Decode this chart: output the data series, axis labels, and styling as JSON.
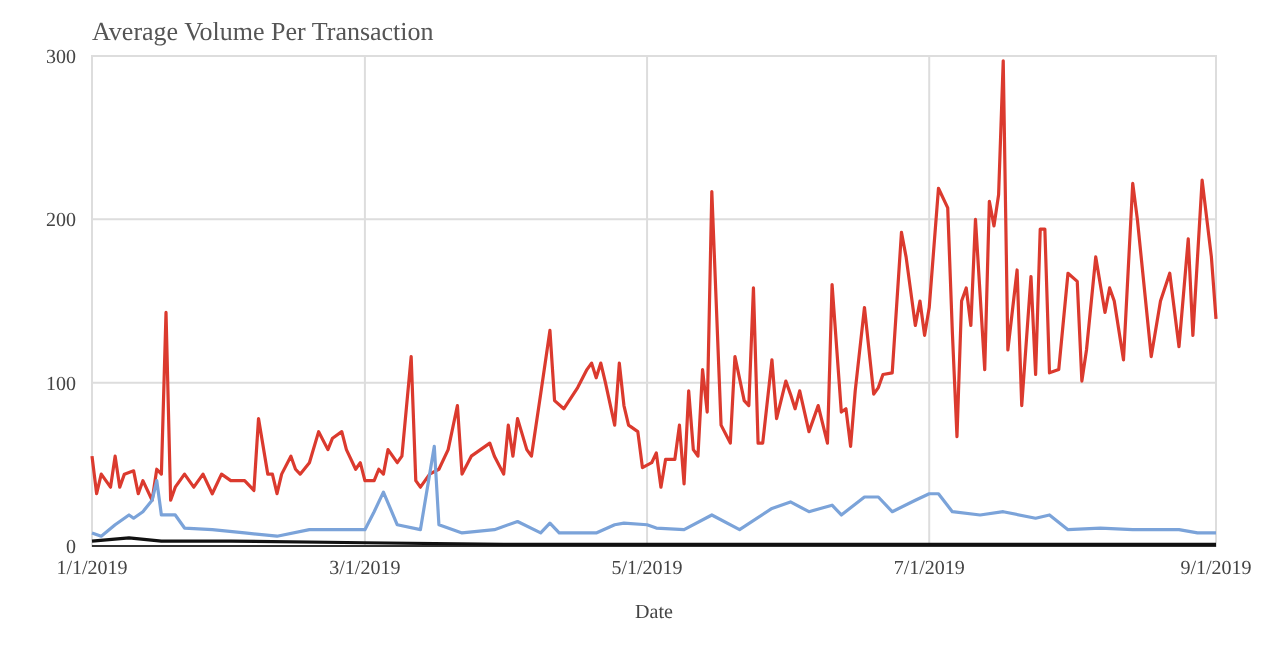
{
  "chart_data": {
    "type": "line",
    "title": "Average Volume Per Transaction",
    "xlabel": "Date",
    "xlim": [
      "2019-01-01",
      "2019-09-01"
    ],
    "xticks": [
      {
        "value": "2019-01-01",
        "label": "1/1/2019"
      },
      {
        "value": "2019-03-01",
        "label": "3/1/2019"
      },
      {
        "value": "2019-05-01",
        "label": "5/1/2019"
      },
      {
        "value": "2019-07-01",
        "label": "7/1/2019"
      },
      {
        "value": "2019-09-01",
        "label": "9/1/2019"
      }
    ],
    "ylim": [
      0,
      300
    ],
    "yticks": [
      0,
      100,
      200,
      300
    ],
    "grid": true,
    "line_style": "solid",
    "marker": "none",
    "series": [
      {
        "color": "#db3a2e",
        "x": [
          "2019-01-01",
          "2019-01-02",
          "2019-01-03",
          "2019-01-05",
          "2019-01-06",
          "2019-01-07",
          "2019-01-08",
          "2019-01-10",
          "2019-01-11",
          "2019-01-12",
          "2019-01-14",
          "2019-01-15",
          "2019-01-16",
          "2019-01-17",
          "2019-01-18",
          "2019-01-19",
          "2019-01-21",
          "2019-01-23",
          "2019-01-25",
          "2019-01-27",
          "2019-01-29",
          "2019-01-31",
          "2019-02-03",
          "2019-02-05",
          "2019-02-06",
          "2019-02-08",
          "2019-02-09",
          "2019-02-10",
          "2019-02-11",
          "2019-02-13",
          "2019-02-14",
          "2019-02-15",
          "2019-02-17",
          "2019-02-19",
          "2019-02-21",
          "2019-02-22",
          "2019-02-24",
          "2019-02-25",
          "2019-02-27",
          "2019-02-28",
          "2019-03-01",
          "2019-03-03",
          "2019-03-04",
          "2019-03-05",
          "2019-03-06",
          "2019-03-08",
          "2019-03-09",
          "2019-03-11",
          "2019-03-12",
          "2019-03-13",
          "2019-03-15",
          "2019-03-17",
          "2019-03-19",
          "2019-03-21",
          "2019-03-22",
          "2019-03-24",
          "2019-03-26",
          "2019-03-28",
          "2019-03-29",
          "2019-03-31",
          "2019-04-01",
          "2019-04-02",
          "2019-04-03",
          "2019-04-05",
          "2019-04-06",
          "2019-04-08",
          "2019-04-10",
          "2019-04-11",
          "2019-04-13",
          "2019-04-16",
          "2019-04-18",
          "2019-04-19",
          "2019-04-20",
          "2019-04-21",
          "2019-04-22",
          "2019-04-24",
          "2019-04-25",
          "2019-04-26",
          "2019-04-27",
          "2019-04-29",
          "2019-04-30",
          "2019-05-02",
          "2019-05-03",
          "2019-05-04",
          "2019-05-05",
          "2019-05-07",
          "2019-05-08",
          "2019-05-09",
          "2019-05-10",
          "2019-05-11",
          "2019-05-12",
          "2019-05-13",
          "2019-05-14",
          "2019-05-15",
          "2019-05-17",
          "2019-05-19",
          "2019-05-20",
          "2019-05-22",
          "2019-05-23",
          "2019-05-24",
          "2019-05-25",
          "2019-05-26",
          "2019-05-28",
          "2019-05-29",
          "2019-05-31",
          "2019-06-01",
          "2019-06-02",
          "2019-06-03",
          "2019-06-05",
          "2019-06-06",
          "2019-06-07",
          "2019-06-09",
          "2019-06-10",
          "2019-06-12",
          "2019-06-13",
          "2019-06-14",
          "2019-06-15",
          "2019-06-17",
          "2019-06-19",
          "2019-06-20",
          "2019-06-21",
          "2019-06-23",
          "2019-06-25",
          "2019-06-26",
          "2019-06-28",
          "2019-06-29",
          "2019-06-30",
          "2019-07-01",
          "2019-07-03",
          "2019-07-05",
          "2019-07-06",
          "2019-07-07",
          "2019-07-08",
          "2019-07-09",
          "2019-07-10",
          "2019-07-11",
          "2019-07-12",
          "2019-07-13",
          "2019-07-14",
          "2019-07-15",
          "2019-07-16",
          "2019-07-17",
          "2019-07-18",
          "2019-07-20",
          "2019-07-21",
          "2019-07-23",
          "2019-07-24",
          "2019-07-25",
          "2019-07-26",
          "2019-07-27",
          "2019-07-29",
          "2019-07-31",
          "2019-08-02",
          "2019-08-03",
          "2019-08-04",
          "2019-08-06",
          "2019-08-08",
          "2019-08-09",
          "2019-08-10",
          "2019-08-12",
          "2019-08-14",
          "2019-08-15",
          "2019-08-18",
          "2019-08-20",
          "2019-08-22",
          "2019-08-24",
          "2019-08-26",
          "2019-08-27",
          "2019-08-29",
          "2019-08-31",
          "2019-09-01"
        ],
        "values": [
          55,
          32,
          44,
          36,
          55,
          36,
          44,
          46,
          32,
          40,
          28,
          47,
          44,
          143,
          28,
          36,
          44,
          36,
          44,
          32,
          44,
          40,
          40,
          34,
          78,
          44,
          44,
          32,
          44,
          55,
          47,
          44,
          51,
          70,
          59,
          66,
          70,
          59,
          47,
          51,
          40,
          40,
          47,
          44,
          59,
          51,
          55,
          116,
          40,
          36,
          44,
          47,
          59,
          86,
          44,
          55,
          59,
          63,
          55,
          44,
          74,
          55,
          78,
          59,
          55,
          93,
          132,
          89,
          84,
          97,
          108,
          112,
          103,
          112,
          100,
          74,
          112,
          86,
          74,
          70,
          48,
          51,
          57,
          36,
          53,
          53,
          74,
          38,
          95,
          59,
          55,
          108,
          82,
          217,
          74,
          63,
          116,
          89,
          86,
          158,
          63,
          63,
          114,
          78,
          101,
          93,
          84,
          95,
          70,
          78,
          86,
          63,
          160,
          82,
          84,
          61,
          95,
          146,
          93,
          97,
          105,
          106,
          192,
          177,
          135,
          150,
          129,
          146,
          219,
          207,
          131,
          67,
          150,
          158,
          135,
          200,
          154,
          108,
          211,
          196,
          215,
          297,
          120,
          169,
          86,
          165,
          105,
          194,
          194,
          106,
          108,
          167,
          162,
          101,
          120,
          177,
          143,
          158,
          150,
          114,
          222,
          200,
          116,
          150,
          167,
          122,
          188,
          129,
          224,
          177,
          139
        ]
      },
      {
        "color": "#7ba3d9",
        "x": [
          "2019-01-01",
          "2019-01-03",
          "2019-01-06",
          "2019-01-09",
          "2019-01-10",
          "2019-01-12",
          "2019-01-14",
          "2019-01-15",
          "2019-01-16",
          "2019-01-19",
          "2019-01-21",
          "2019-01-27",
          "2019-02-03",
          "2019-02-10",
          "2019-02-17",
          "2019-02-24",
          "2019-03-01",
          "2019-03-03",
          "2019-03-05",
          "2019-03-08",
          "2019-03-13",
          "2019-03-16",
          "2019-03-17",
          "2019-03-22",
          "2019-03-29",
          "2019-04-03",
          "2019-04-08",
          "2019-04-10",
          "2019-04-12",
          "2019-04-20",
          "2019-04-24",
          "2019-04-26",
          "2019-05-01",
          "2019-05-03",
          "2019-05-09",
          "2019-05-15",
          "2019-05-21",
          "2019-05-28",
          "2019-06-01",
          "2019-06-05",
          "2019-06-10",
          "2019-06-12",
          "2019-06-17",
          "2019-06-20",
          "2019-06-23",
          "2019-06-28",
          "2019-07-01",
          "2019-07-03",
          "2019-07-06",
          "2019-07-12",
          "2019-07-17",
          "2019-07-24",
          "2019-07-27",
          "2019-07-31",
          "2019-08-07",
          "2019-08-14",
          "2019-08-24",
          "2019-08-28",
          "2019-09-01"
        ],
        "values": [
          8,
          6,
          13,
          19,
          17,
          21,
          28,
          40,
          19,
          19,
          11,
          10,
          8,
          6,
          10,
          10,
          10,
          21,
          33,
          13,
          10,
          61,
          13,
          8,
          10,
          15,
          8,
          14,
          8,
          8,
          13,
          14,
          13,
          11,
          10,
          19,
          10,
          23,
          27,
          21,
          25,
          19,
          30,
          30,
          21,
          28,
          32,
          32,
          21,
          19,
          21,
          17,
          19,
          10,
          11,
          10,
          10,
          8,
          8
        ]
      },
      {
        "color": "#111111",
        "x": [
          "2019-01-01",
          "2019-01-09",
          "2019-01-16",
          "2019-01-31",
          "2019-03-01",
          "2019-03-31",
          "2019-05-01",
          "2019-05-31",
          "2019-06-30",
          "2019-07-31",
          "2019-09-01"
        ],
        "values": [
          3,
          5,
          3,
          3,
          2,
          1,
          1,
          1,
          1,
          1,
          1
        ]
      }
    ]
  }
}
